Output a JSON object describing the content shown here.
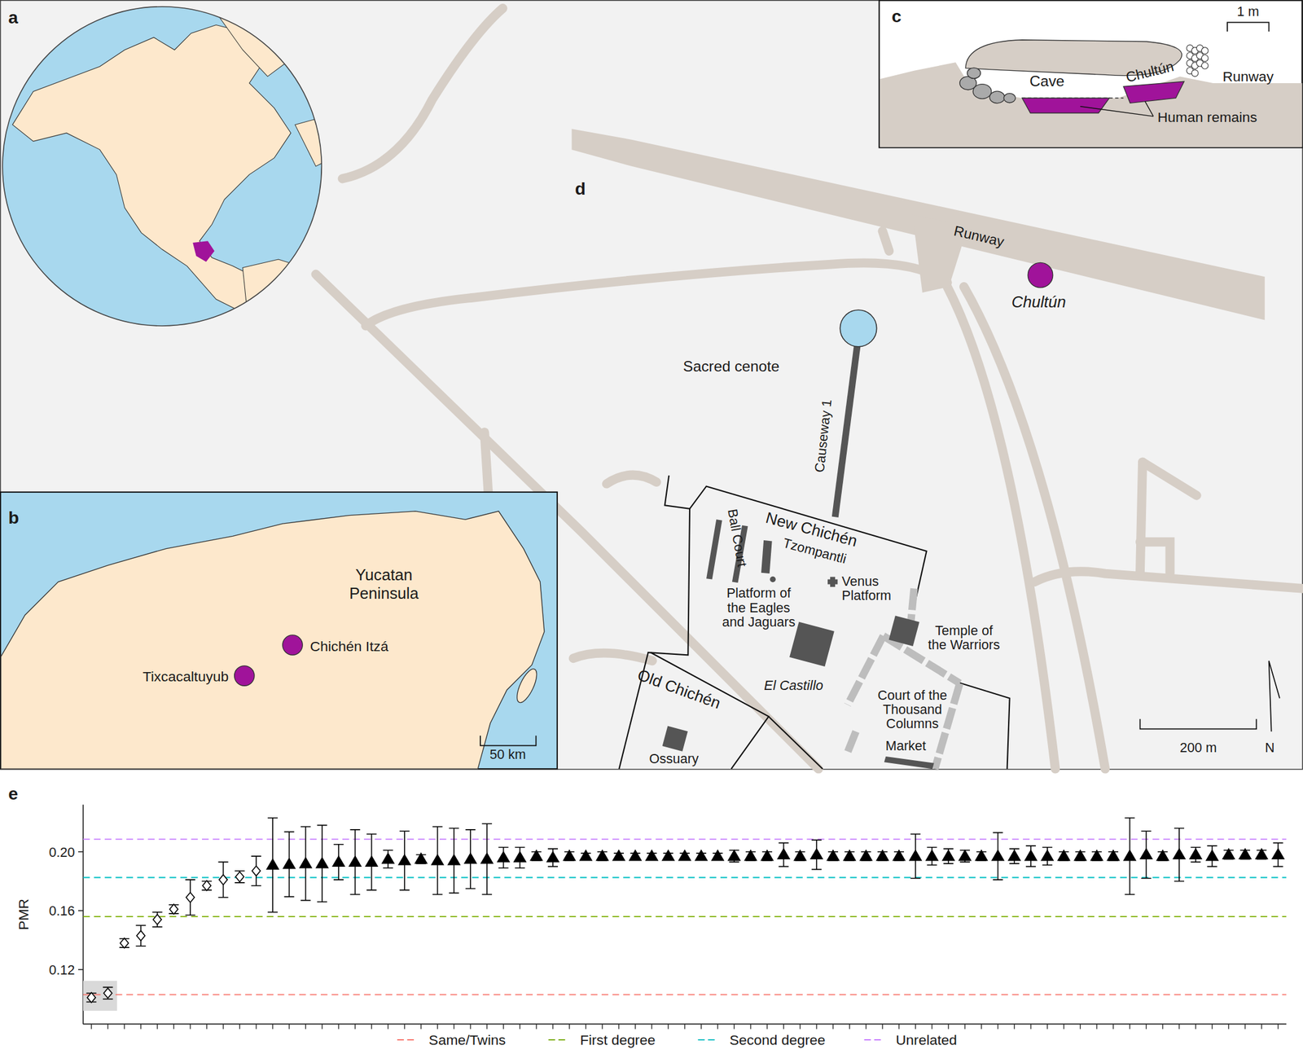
{
  "panels": {
    "a": {
      "label": "a"
    },
    "b": {
      "label": "b",
      "region": [
        "Yucatan",
        "Peninsula"
      ],
      "sites": [
        "Chichén Itzá",
        "Tixcacaltuyub"
      ],
      "scale_bar": "50 km"
    },
    "c": {
      "label": "c",
      "labels": {
        "cave": "Cave",
        "chultun": "Chultún",
        "runway": "Runway",
        "remains": "Human remains"
      },
      "scale_bar": "1 m"
    },
    "d": {
      "label": "d",
      "labels": {
        "runway": "Runway",
        "chultun": "Chultún",
        "cenote": "Sacred cenote",
        "causeway": "Causeway 1",
        "new_chichen": "New Chichén",
        "ball_court": "Ball Court",
        "tzompantli": "Tzompantli",
        "eagles": [
          "Platform of",
          "the Eagles",
          "and Jaguars"
        ],
        "venus": [
          "Venus",
          "Platform"
        ],
        "warriors": [
          "Temple of",
          "the Warriors"
        ],
        "castillo": "El Castillo",
        "court": [
          "Court of the",
          "Thousand",
          "Columns"
        ],
        "market": "Market",
        "old_chichen": "Old Chichén",
        "ossuary": "Ossuary"
      },
      "scale_bar": "200 m",
      "north": "N"
    }
  },
  "chart_data": {
    "type": "scatter",
    "panel_label": "e",
    "y_label": "PMR",
    "categories": [
      null,
      null,
      null,
      null,
      null,
      null,
      null,
      null,
      null,
      null,
      null,
      null,
      null,
      null,
      null,
      null,
      null,
      null,
      null,
      null,
      null,
      null,
      null,
      null,
      null,
      null,
      null,
      null,
      null,
      null,
      null,
      null,
      null,
      null,
      null,
      null,
      null,
      null,
      null,
      null,
      null,
      null,
      null,
      null,
      null,
      null,
      null,
      null,
      null,
      null,
      null,
      null,
      null,
      null,
      null,
      null,
      null,
      null,
      null,
      null,
      null,
      null,
      null,
      null,
      null,
      null,
      null,
      null,
      null,
      null,
      null,
      null,
      null
    ],
    "ylim": [
      0.083,
      0.232
    ],
    "yticks": [
      0.12,
      0.16,
      {
        "value": 0.2,
        "label": "0.20"
      }
    ],
    "tick_labels": "y",
    "legend": "bottom",
    "series": [
      {
        "marker": "open-diamond",
        "color": "#000000",
        "values": [
          0.101,
          0.104,
          0.138,
          0.143,
          0.154,
          0.161,
          0.169,
          0.177,
          0.181,
          0.183,
          0.187,
          null,
          null,
          null,
          null,
          null,
          null,
          null,
          null,
          null,
          null,
          null,
          null,
          null,
          null,
          null,
          null,
          null,
          null,
          null,
          null,
          null,
          null,
          null,
          null,
          null,
          null,
          null,
          null,
          null,
          null,
          null,
          null,
          null,
          null,
          null,
          null,
          null,
          null,
          null,
          null,
          null,
          null,
          null,
          null,
          null,
          null,
          null,
          null,
          null,
          null,
          null,
          null,
          null,
          null,
          null,
          null,
          null,
          null,
          null,
          null,
          null,
          null
        ],
        "errors": [
          0.003,
          0.004,
          0.003,
          0.007,
          0.005,
          0.003,
          0.012,
          0.003,
          0.012,
          0.004,
          0.01,
          null,
          null,
          null,
          null,
          null,
          null,
          null,
          null,
          null,
          null,
          null,
          null,
          null,
          null,
          null,
          null,
          null,
          null,
          null,
          null,
          null,
          null,
          null,
          null,
          null,
          null,
          null,
          null,
          null,
          null,
          null,
          null,
          null,
          null,
          null,
          null,
          null,
          null,
          null,
          null,
          null,
          null,
          null,
          null,
          null,
          null,
          null,
          null,
          null,
          null,
          null,
          null,
          null,
          null,
          null,
          null,
          null,
          null,
          null,
          null,
          null,
          null
        ]
      },
      {
        "marker": "triangle",
        "color": "#000000",
        "values": [
          null,
          null,
          null,
          null,
          null,
          null,
          null,
          null,
          null,
          null,
          null,
          0.191,
          0.1915,
          0.192,
          0.192,
          0.193,
          0.193,
          0.193,
          0.195,
          0.194,
          0.195,
          0.194,
          0.194,
          0.195,
          0.195,
          0.196,
          0.196,
          0.197,
          0.196,
          0.197,
          0.197,
          0.197,
          0.197,
          0.197,
          0.197,
          0.197,
          0.197,
          0.197,
          0.197,
          0.197,
          0.197,
          0.197,
          0.198,
          0.197,
          0.198,
          0.197,
          0.197,
          0.197,
          0.197,
          0.197,
          0.197,
          0.197,
          0.197,
          0.197,
          0.197,
          0.197,
          0.197,
          0.197,
          0.197,
          0.197,
          0.197,
          0.197,
          0.197,
          0.197,
          0.198,
          0.197,
          0.198,
          0.198,
          0.197,
          0.198,
          0.198,
          0.198,
          0.198
        ],
        "errors": [
          null,
          null,
          null,
          null,
          null,
          null,
          null,
          null,
          null,
          null,
          null,
          0.032,
          0.022,
          0.025,
          0.026,
          0.012,
          0.022,
          0.019,
          0.006,
          0.02,
          0.003,
          0.023,
          0.022,
          0.02,
          0.024,
          0.007,
          0.007,
          0.003,
          0.006,
          0.003,
          0.002,
          0.003,
          0.002,
          0.002,
          0.002,
          0.002,
          0.002,
          0.002,
          0.002,
          0.004,
          0.003,
          0.003,
          0.008,
          0.003,
          0.01,
          0.003,
          0.003,
          0.003,
          0.003,
          0.003,
          0.015,
          0.006,
          0.005,
          0.004,
          0.003,
          0.016,
          0.005,
          0.007,
          0.006,
          0.003,
          0.003,
          0.003,
          0.003,
          0.026,
          0.016,
          0.003,
          0.018,
          0.005,
          0.007,
          0.003,
          0.003,
          0.003,
          0.008
        ]
      }
    ],
    "reference_lines": [
      {
        "name": "Same/Twins",
        "value": 0.103,
        "color": "#F8766D",
        "line_style": "dashed"
      },
      {
        "name": "First degree",
        "value": 0.156,
        "color": "#7CAE00",
        "line_style": "dashed"
      },
      {
        "name": "Second degree",
        "value": 0.1825,
        "color": "#00BFC4",
        "line_style": "dashed"
      },
      {
        "name": "Unrelated",
        "value": 0.2085,
        "color": "#C77CFF",
        "line_style": "dashed"
      }
    ]
  }
}
